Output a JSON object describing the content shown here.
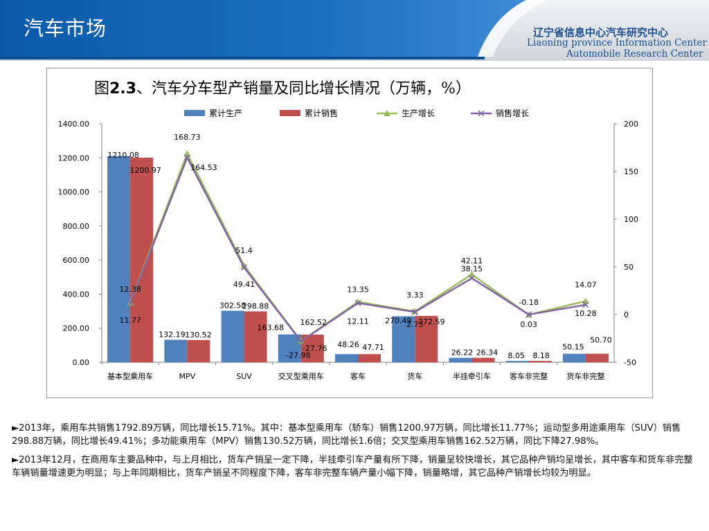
{
  "header": {
    "title": "汽车市场",
    "logo_line1_prefix": "辽宁省信息中心",
    "logo_line1_bold": "汽车研究中心",
    "logo_line2": "Liaoning province Information Center",
    "logo_line3": "Automobile Research Center"
  },
  "colors": {
    "header_blue": "#0a5aa8",
    "production_bar": "#4f81bd",
    "sales_bar": "#c0504d",
    "production_growth_line": "#9bbb59",
    "sales_growth_line": "#8064a2"
  },
  "chart_data": {
    "type": "bar",
    "title_prefix": "图",
    "title_number": "2.3",
    "title_rest": "、汽车分车型产销量及同比增长情况（万辆，%）",
    "categories": [
      "基本型乘用车",
      "MPV",
      "SUV",
      "交叉型乘用车",
      "客车",
      "货车",
      "半挂牵引车",
      "客车非完整",
      "货车非完整"
    ],
    "series": [
      {
        "name": "累计生产",
        "kind": "bar",
        "axis": "left",
        "values": [
          1210.08,
          132.19,
          302.58,
          163.68,
          48.26,
          270.49,
          26.22,
          8.05,
          50.15
        ],
        "labels": [
          "1210.08",
          "132.19",
          "302.58",
          "163.68",
          "48.26",
          "270.49",
          "26.22",
          "8.05",
          "50.15"
        ]
      },
      {
        "name": "累计销售",
        "kind": "bar",
        "axis": "left",
        "values": [
          1200.97,
          130.52,
          298.88,
          162.52,
          47.71,
          272.59,
          26.34,
          8.18,
          50.7
        ],
        "labels": [
          "1200.97",
          "130.52",
          "298.88",
          "162.52",
          "47.71",
          "272.59",
          "26.34",
          "8.18",
          "50.70"
        ]
      },
      {
        "name": "生产增长",
        "kind": "line",
        "axis": "right",
        "values": [
          12.38,
          168.73,
          51.4,
          -27.76,
          13.35,
          3.33,
          42.11,
          -0.18,
          14.07
        ],
        "labels": [
          "12.38",
          "168.73",
          "51.4",
          "-27.76",
          "13.35",
          "3.33",
          "42.11",
          "-0.18",
          "14.07"
        ]
      },
      {
        "name": "销售增长",
        "kind": "line",
        "axis": "right",
        "values": [
          11.77,
          164.53,
          49.41,
          -27.98,
          12.11,
          2.73,
          38.15,
          0.03,
          10.28
        ],
        "labels": [
          "11.77",
          "164.53",
          "49.41",
          "-27.98",
          "12.11",
          "2.73",
          "38.15",
          "0.03",
          "10.28"
        ]
      }
    ],
    "y_left": {
      "min": 0,
      "max": 1400,
      "step": 200,
      "ticks": [
        "0.00",
        "200.00",
        "400.00",
        "600.00",
        "800.00",
        "1000.00",
        "1200.00",
        "1400.00"
      ]
    },
    "y_right": {
      "min": -50,
      "max": 200,
      "step": 50,
      "ticks": [
        "-50",
        "0",
        "50",
        "100",
        "150",
        "200"
      ]
    },
    "legend_position": "top",
    "grid": false
  },
  "notes": [
    "►2013年，乘用车共销售1792.89万辆，同比增长15.71%。其中：基本型乘用车（轿车）销售1200.97万辆，同比增长11.77%；运动型多用途乘用车（SUV）销售298.88万辆，同比增长49.41%；多功能乘用车（MPV）销售130.52万辆，同比增长1.6倍；交叉型乘用车销售162.52万辆，同比下降27.98%。",
    "►2013年12月，在商用车主要品种中，与上月相比，货车产销呈一定下降，半挂牵引车产量有所下降，销量呈较快增长，其它品种产销均呈增长，其中客车和货车非完整车辆销量增速更为明显；与上年同期相比，货车产销呈不同程度下降，客车非完整车辆产量小幅下降，销量略增，其它品种产销增长均较为明显。"
  ]
}
